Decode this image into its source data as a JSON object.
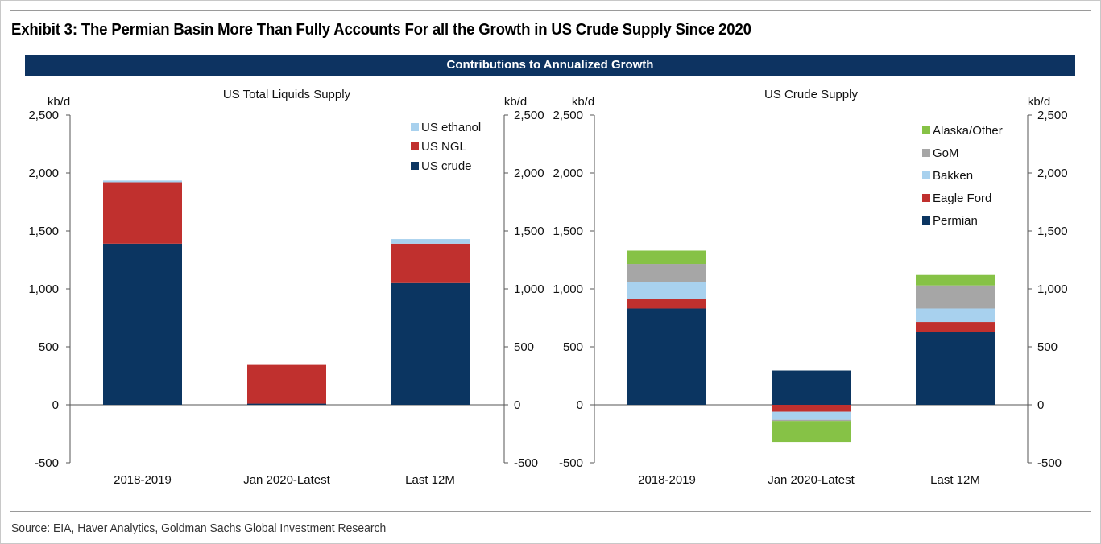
{
  "header": {
    "exhibit_title": "Exhibit 3: The Permian Basin More Than Fully Accounts For all the Growth in US Crude Supply Since 2020",
    "banner": "Contributions to Annualized Growth"
  },
  "footer": {
    "source": "Source: EIA, Haver Analytics, Goldman Sachs Global Investment Research"
  },
  "colors": {
    "banner": "#0d3361",
    "dark_navy": "#0b3561",
    "red": "#c0302e",
    "light_blue": "#a8d1ee",
    "gray": "#a6a6a6",
    "green": "#86c246"
  },
  "chart_data": [
    {
      "type": "bar",
      "stacked": true,
      "title": "US Total Liquids Supply",
      "ylabel_left": "kb/d",
      "ylabel_right": "kb/d",
      "ylim": [
        -500,
        2500
      ],
      "yticks": [
        -500,
        0,
        500,
        1000,
        1500,
        2000,
        2500
      ],
      "ytick_labels": [
        "-500",
        "0",
        "500",
        "1,000",
        "1,500",
        "2,000",
        "2,500"
      ],
      "categories": [
        "2018-2019",
        "Jan 2020-Latest",
        "Last 12M"
      ],
      "legend": "top-right",
      "series": [
        {
          "name": "US crude",
          "color": "#0b3561",
          "values": [
            1390,
            10,
            1050
          ]
        },
        {
          "name": "US NGL",
          "color": "#c0302e",
          "values": [
            530,
            340,
            340
          ]
        },
        {
          "name": "US ethanol",
          "color": "#a8d1ee",
          "values": [
            15,
            0,
            40
          ]
        }
      ],
      "grid": false
    },
    {
      "type": "bar",
      "stacked": true,
      "title": "US Crude Supply",
      "ylabel_left": "kb/d",
      "ylabel_right": "kb/d",
      "ylim": [
        -500,
        2500
      ],
      "yticks": [
        -500,
        0,
        500,
        1000,
        1500,
        2000,
        2500
      ],
      "ytick_labels": [
        "-500",
        "0",
        "500",
        "1,000",
        "1,500",
        "2,000",
        "2,500"
      ],
      "categories": [
        "2018-2019",
        "Jan 2020-Latest",
        "Last 12M"
      ],
      "legend": "top-right",
      "series": [
        {
          "name": "Permian",
          "color": "#0b3561",
          "values": [
            830,
            295,
            630
          ]
        },
        {
          "name": "Eagle Ford",
          "color": "#c0302e",
          "values": [
            80,
            -60,
            85
          ]
        },
        {
          "name": "Bakken",
          "color": "#a8d1ee",
          "values": [
            150,
            -70,
            115
          ]
        },
        {
          "name": "GoM",
          "color": "#a6a6a6",
          "values": [
            155,
            -10,
            200
          ]
        },
        {
          "name": "Alaska/Other",
          "color": "#86c246",
          "values": [
            115,
            -180,
            90
          ]
        }
      ],
      "grid": false
    }
  ]
}
